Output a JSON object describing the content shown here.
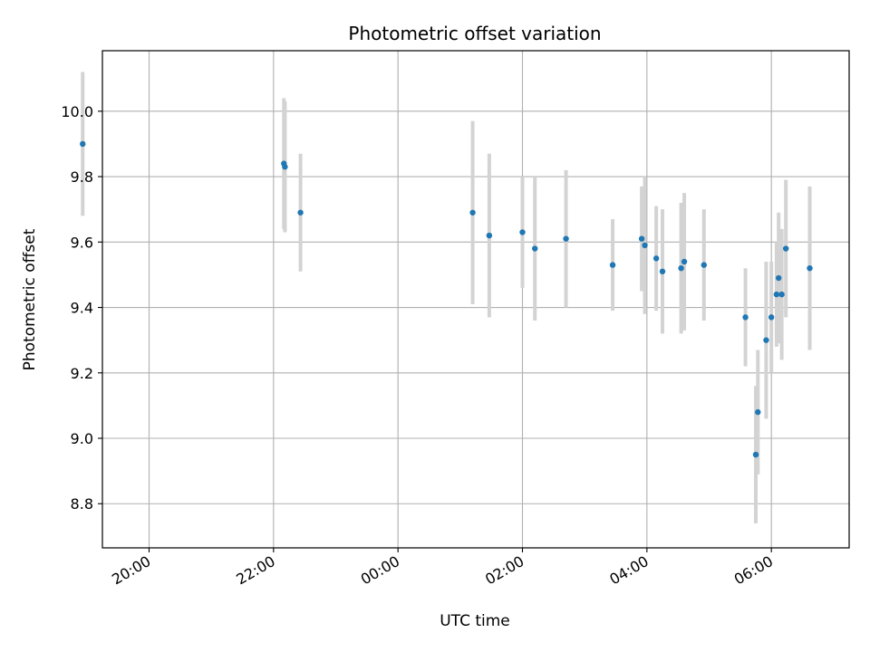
{
  "chart_data": {
    "type": "scatter",
    "title": "Photometric offset variation",
    "xlabel": "UTC time",
    "ylabel": "Photometric offset",
    "x_axis_type": "time",
    "xlim": [
      "19:15",
      "07:15"
    ],
    "ylim": [
      8.665,
      10.185
    ],
    "x_ticks": [
      {
        "time": "20:00",
        "label": "20:00"
      },
      {
        "time": "22:00",
        "label": "22:00"
      },
      {
        "time": "24:00",
        "label": "00:00"
      },
      {
        "time": "26:00",
        "label": "02:00"
      },
      {
        "time": "28:00",
        "label": "04:00"
      },
      {
        "time": "30:00",
        "label": "06:00"
      }
    ],
    "y_ticks": [
      8.8,
      9.0,
      9.2,
      9.4,
      9.6,
      9.8,
      10.0
    ],
    "grid": true,
    "point_color": "#1f77b4",
    "errorbar_color": "#d3d3d3",
    "points": [
      {
        "time": "18:56",
        "y": 9.9,
        "err": 0.22
      },
      {
        "time": "22:10",
        "y": 9.84,
        "err": 0.2
      },
      {
        "time": "22:11",
        "y": 9.83,
        "err": 0.2
      },
      {
        "time": "22:26",
        "y": 9.69,
        "err": 0.18
      },
      {
        "time": "25:12",
        "y": 9.69,
        "err": 0.28
      },
      {
        "time": "25:28",
        "y": 9.62,
        "err": 0.25
      },
      {
        "time": "26:00",
        "y": 9.63,
        "err": 0.17
      },
      {
        "time": "26:12",
        "y": 9.58,
        "err": 0.22
      },
      {
        "time": "26:42",
        "y": 9.61,
        "err": 0.21
      },
      {
        "time": "27:27",
        "y": 9.53,
        "err": 0.14
      },
      {
        "time": "27:55",
        "y": 9.61,
        "err": 0.16
      },
      {
        "time": "27:58",
        "y": 9.59,
        "err": 0.21
      },
      {
        "time": "28:09",
        "y": 9.55,
        "err": 0.16
      },
      {
        "time": "28:15",
        "y": 9.51,
        "err": 0.19
      },
      {
        "time": "28:33",
        "y": 9.52,
        "err": 0.2
      },
      {
        "time": "28:36",
        "y": 9.54,
        "err": 0.21
      },
      {
        "time": "28:55",
        "y": 9.53,
        "err": 0.17
      },
      {
        "time": "29:35",
        "y": 9.37,
        "err": 0.15
      },
      {
        "time": "29:45",
        "y": 8.95,
        "err": 0.21
      },
      {
        "time": "29:47",
        "y": 9.08,
        "err": 0.19
      },
      {
        "time": "29:55",
        "y": 9.3,
        "err": 0.24
      },
      {
        "time": "30:00",
        "y": 9.37,
        "err": 0.17
      },
      {
        "time": "30:05",
        "y": 9.44,
        "err": 0.16
      },
      {
        "time": "30:07",
        "y": 9.49,
        "err": 0.2
      },
      {
        "time": "30:10",
        "y": 9.44,
        "err": 0.2
      },
      {
        "time": "30:14",
        "y": 9.58,
        "err": 0.21
      },
      {
        "time": "30:37",
        "y": 9.52,
        "err": 0.25
      }
    ]
  }
}
